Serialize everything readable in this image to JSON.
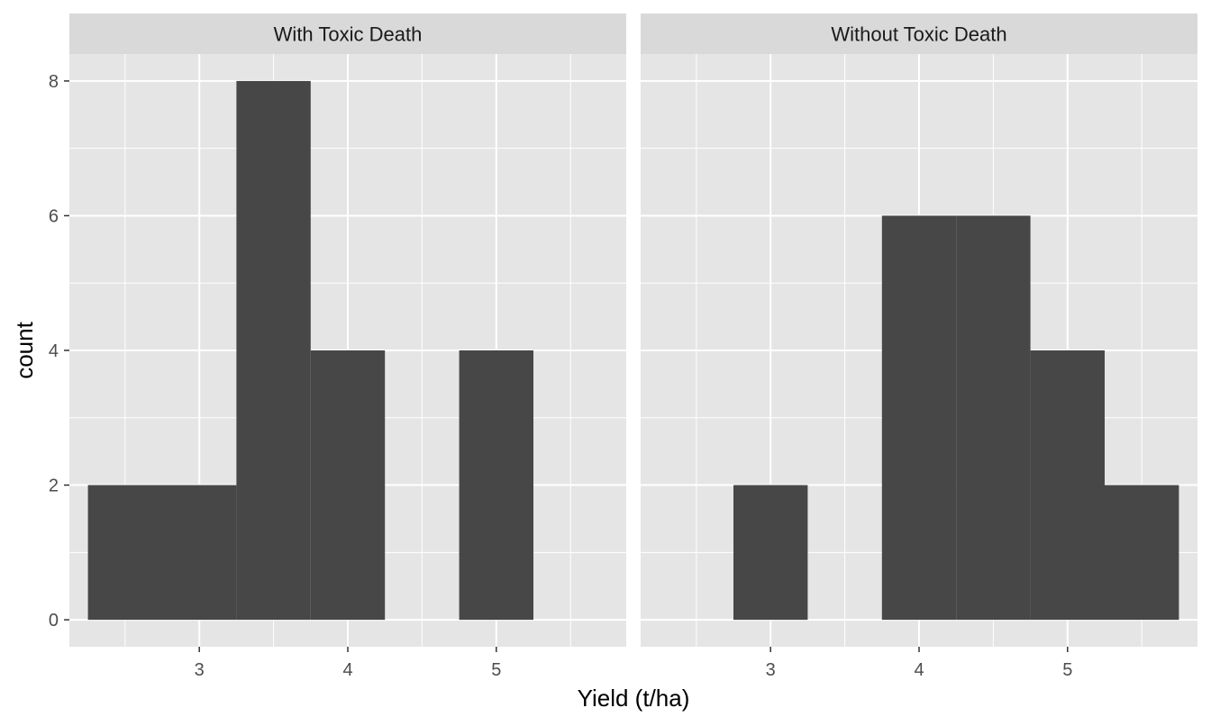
{
  "chart_data": {
    "type": "bar",
    "xlabel": "Yield (t/ha)",
    "ylabel": "count",
    "xlim": [
      2.125,
      5.875
    ],
    "ylim": [
      -0.4,
      8.4
    ],
    "x_ticks": [
      3,
      4,
      5
    ],
    "y_ticks": [
      0,
      2,
      4,
      6,
      8
    ],
    "bin_width": 0.5,
    "grid": true,
    "colors": {
      "panel_bg": "#e5e5e5",
      "strip_bg": "#d9d9d9",
      "bar_fill": "#474747",
      "grid": "#ffffff"
    },
    "panels": [
      {
        "label": "With Toxic Death",
        "bins": [
          {
            "x0": 2.25,
            "x1": 2.75,
            "count": 2
          },
          {
            "x0": 2.75,
            "x1": 3.25,
            "count": 2
          },
          {
            "x0": 3.25,
            "x1": 3.75,
            "count": 8
          },
          {
            "x0": 3.75,
            "x1": 4.25,
            "count": 4
          },
          {
            "x0": 4.25,
            "x1": 4.75,
            "count": 0
          },
          {
            "x0": 4.75,
            "x1": 5.25,
            "count": 4
          }
        ]
      },
      {
        "label": "Without Toxic Death",
        "bins": [
          {
            "x0": 2.75,
            "x1": 3.25,
            "count": 2
          },
          {
            "x0": 3.25,
            "x1": 3.75,
            "count": 0
          },
          {
            "x0": 3.75,
            "x1": 4.25,
            "count": 6
          },
          {
            "x0": 4.25,
            "x1": 4.75,
            "count": 6
          },
          {
            "x0": 4.75,
            "x1": 5.25,
            "count": 4
          },
          {
            "x0": 5.25,
            "x1": 5.75,
            "count": 2
          }
        ]
      }
    ]
  }
}
